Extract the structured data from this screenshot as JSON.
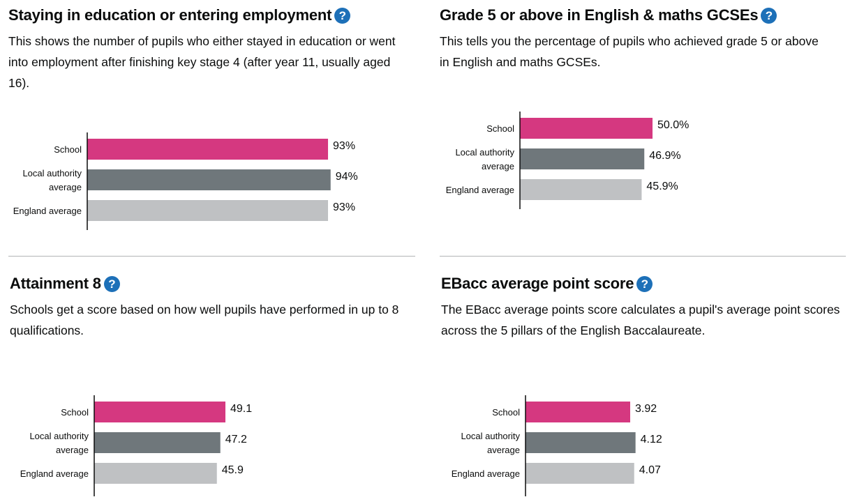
{
  "colors": {
    "school": "#d53880",
    "local_authority": "#6f777b",
    "england": "#bfc1c3",
    "help_icon": "#1d70b8"
  },
  "help_icon_glyph": "?",
  "panels": [
    {
      "heading": "Staying in education or entering employment",
      "description": "This shows the number of pupils who either stayed in education or went into employment after finishing key stage 4 (after year 11, usually aged 16)."
    },
    {
      "heading": "Grade 5 or above in English & maths GCSEs",
      "description": "This tells you the percentage of pupils who achieved grade 5 or above in English and maths GCSEs."
    },
    {
      "heading": "Attainment 8",
      "description": "Schools get a score based on how well pupils have performed in up to 8 qualifications."
    },
    {
      "heading": "EBacc average point score",
      "description": "The EBacc average points score calculates a pupil's average point scores across the 5 pillars of the English Baccalaureate."
    }
  ],
  "chart_data": [
    {
      "type": "bar",
      "orientation": "horizontal",
      "categories": [
        "School",
        "Local authority average",
        "England average"
      ],
      "category_lines": [
        [
          "School"
        ],
        [
          "Local authority",
          "average"
        ],
        [
          "England average"
        ]
      ],
      "values": [
        93,
        94,
        93
      ],
      "value_labels": [
        "93%",
        "94%",
        "93%"
      ]
    },
    {
      "type": "bar",
      "orientation": "horizontal",
      "categories": [
        "School",
        "Local authority average",
        "England average"
      ],
      "category_lines": [
        [
          "School"
        ],
        [
          "Local authority",
          "average"
        ],
        [
          "England average"
        ]
      ],
      "values": [
        50.0,
        46.9,
        45.9
      ],
      "value_labels": [
        "50.0%",
        "46.9%",
        "45.9%"
      ]
    },
    {
      "type": "bar",
      "orientation": "horizontal",
      "categories": [
        "School",
        "Local authority average",
        "England average"
      ],
      "category_lines": [
        [
          "School"
        ],
        [
          "Local authority",
          "average"
        ],
        [
          "England average"
        ]
      ],
      "values": [
        49.1,
        47.2,
        45.9
      ],
      "value_labels": [
        "49.1",
        "47.2",
        "45.9"
      ]
    },
    {
      "type": "bar",
      "orientation": "horizontal",
      "categories": [
        "School",
        "Local authority average",
        "England average"
      ],
      "category_lines": [
        [
          "School"
        ],
        [
          "Local authority",
          "average"
        ],
        [
          "England average"
        ]
      ],
      "values": [
        3.92,
        4.12,
        4.07
      ],
      "value_labels": [
        "3.92",
        "4.12",
        "4.07"
      ]
    }
  ]
}
